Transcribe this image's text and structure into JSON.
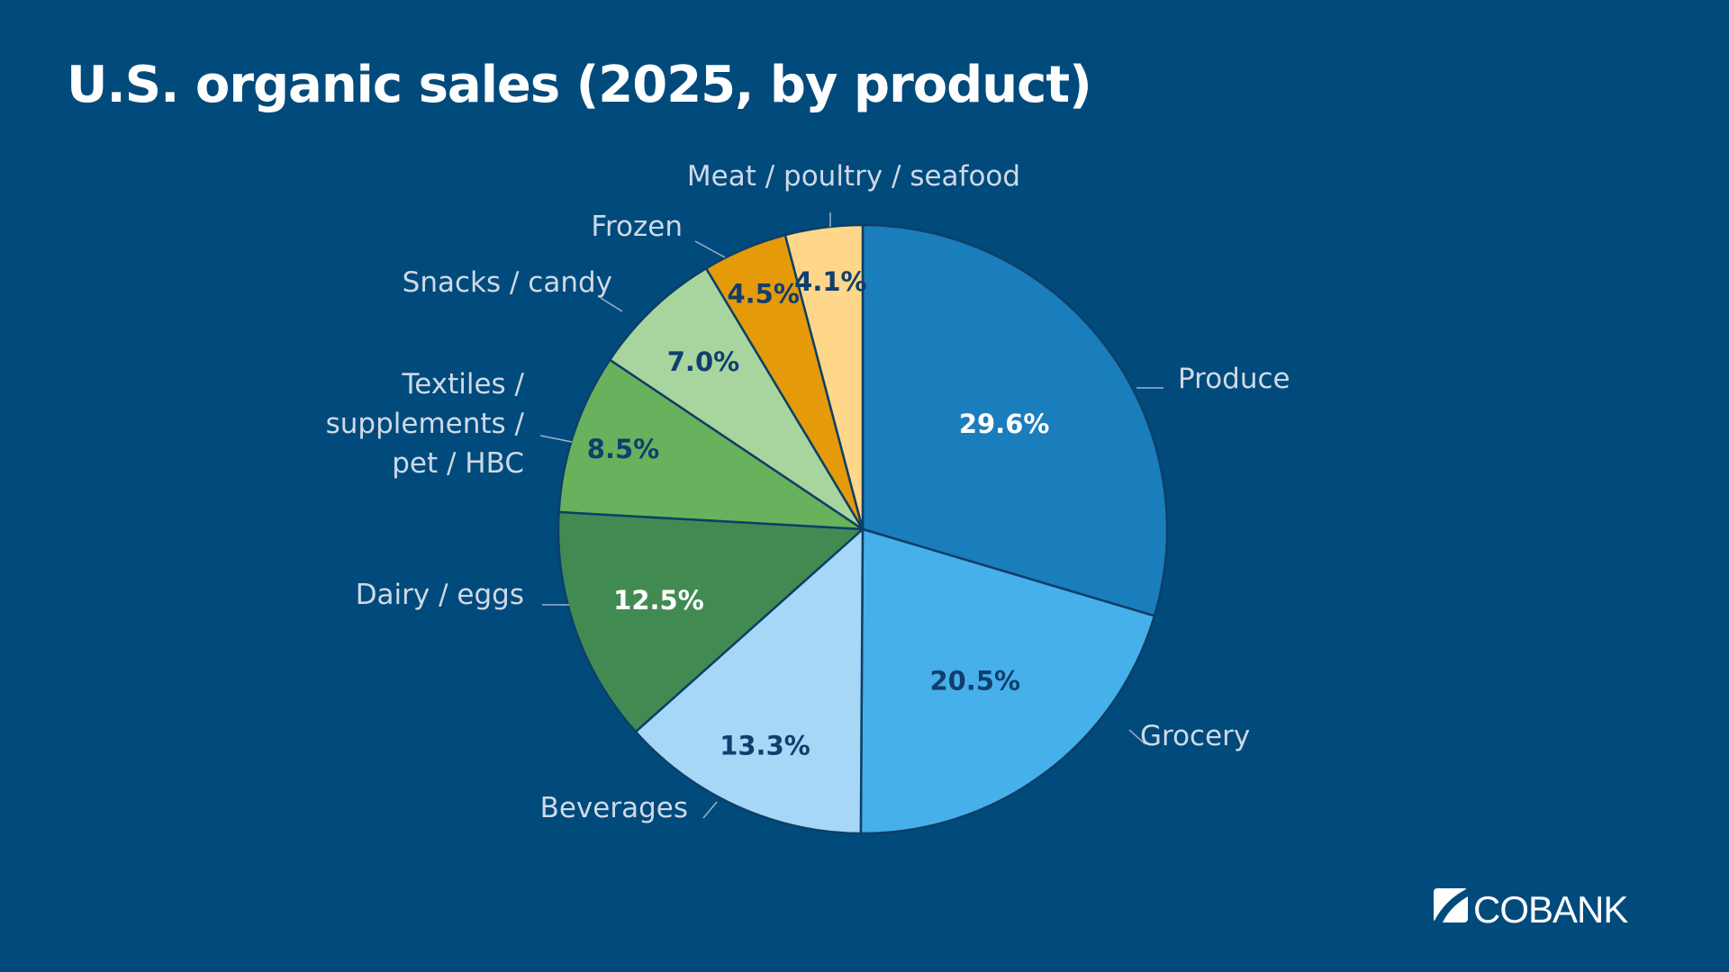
{
  "title": "U.S. organic sales (2025, by product)",
  "brand": "CoBank",
  "colors": {
    "background": "#004a7c",
    "title": "#ffffff",
    "category_label": "#cfd9e6"
  },
  "chart_data": {
    "type": "pie",
    "title": "U.S. organic sales (2025, by product)",
    "unit": "%",
    "slices": [
      {
        "label": "Produce",
        "value": 29.6,
        "display": "29.6%",
        "color": "#1a7dbc",
        "text_color": "#ffffff"
      },
      {
        "label": "Grocery",
        "value": 20.5,
        "display": "20.5%",
        "color": "#46b0ea",
        "text_color": "#0f3f6e"
      },
      {
        "label": "Beverages",
        "value": 13.3,
        "display": "13.3%",
        "color": "#a6d7f6",
        "text_color": "#0f3f6e"
      },
      {
        "label": "Dairy / eggs",
        "value": 12.5,
        "display": "12.5%",
        "color": "#418b53",
        "text_color": "#ffffff"
      },
      {
        "label": "Textiles / supplements / pet / HBC",
        "label_lines": [
          "Textiles /",
          "supplements /",
          "pet / HBC"
        ],
        "value": 8.5,
        "display": "8.5%",
        "color": "#68b15d",
        "text_color": "#0f3f6e"
      },
      {
        "label": "Snacks / candy",
        "value": 7.0,
        "display": "7.0%",
        "color": "#a8d59e",
        "text_color": "#0f3f6e"
      },
      {
        "label": "Frozen",
        "value": 4.5,
        "display": "4.5%",
        "color": "#e59a0a",
        "text_color": "#0f3f6e"
      },
      {
        "label": "Meat / poultry / seafood",
        "value": 4.1,
        "display": "4.1%",
        "color": "#ffd78a",
        "text_color": "#0f3f6e"
      }
    ],
    "start_angle": "12 o'clock",
    "direction": "clockwise",
    "legend": "none (direct labels)"
  }
}
